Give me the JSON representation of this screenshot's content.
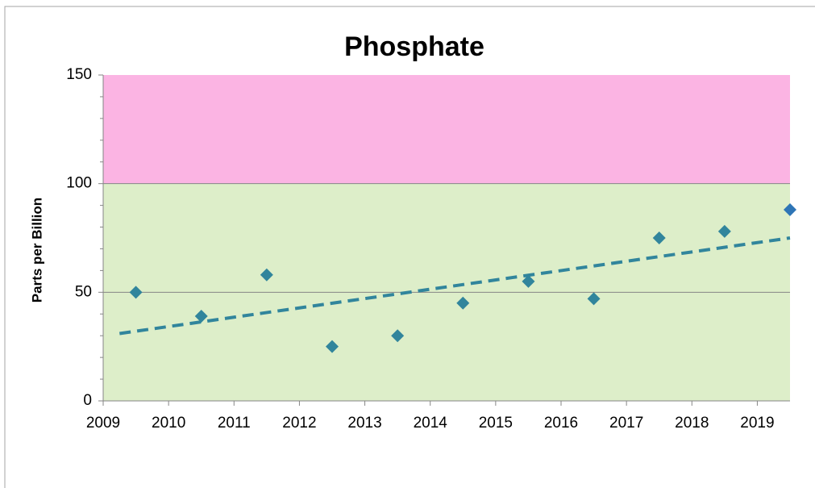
{
  "chart_data": {
    "type": "scatter",
    "title": "Phosphate",
    "y_label": "Parts per Billion",
    "x": [
      2009.5,
      2010.5,
      2011.5,
      2012.5,
      2013.5,
      2014.5,
      2015.5,
      2016.5,
      2017.5,
      2018.5,
      2019.5
    ],
    "series": [
      {
        "color": "#31859c",
        "colors": [
          "#31859c",
          "#31859c",
          "#31859c",
          "#31859c",
          "#31859c",
          "#31859c",
          "#31859c",
          "#31859c",
          "#31859c",
          "#31859c",
          "#2e75b6"
        ],
        "values": [
          50,
          39,
          58,
          25,
          30,
          45,
          55,
          47,
          75,
          78,
          88
        ]
      }
    ],
    "trendline": {
      "x": [
        2009.25,
        2019.5
      ],
      "values": [
        31,
        75
      ],
      "color": "#31859c",
      "dashed": true
    },
    "bands": [
      {
        "from": 0,
        "to": 100,
        "color": "#ddeec9"
      },
      {
        "from": 100,
        "to": 150,
        "color": "#fbb4e3"
      }
    ],
    "xlim": [
      2009,
      2019.5
    ],
    "xticks": [
      2009,
      2010,
      2011,
      2012,
      2013,
      2014,
      2015,
      2016,
      2017,
      2018,
      2019
    ],
    "ylim": [
      0,
      150
    ],
    "yticks": [
      0,
      50,
      100,
      150
    ],
    "grid": true
  }
}
